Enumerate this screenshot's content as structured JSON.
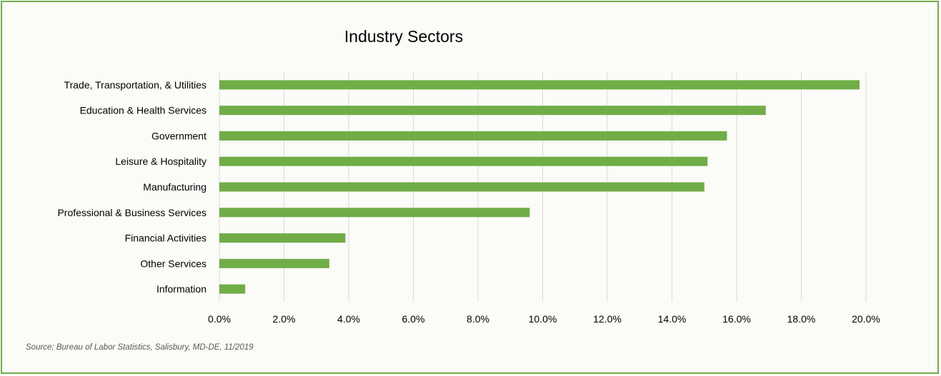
{
  "chart_data": {
    "type": "bar",
    "orientation": "horizontal",
    "title": "Industry Sectors",
    "categories": [
      "Trade, Transportation, & Utilities",
      "Education & Health Services",
      "Government",
      "Leisure & Hospitality",
      "Manufacturing",
      "Professional & Business Services",
      "Financial Activities",
      "Other Services",
      "Information"
    ],
    "values": [
      0.198,
      0.169,
      0.157,
      0.151,
      0.15,
      0.096,
      0.039,
      0.034,
      0.008
    ],
    "xlabel": "",
    "ylabel": "",
    "xlim": [
      0,
      0.2
    ],
    "x_ticks": [
      "0.0%",
      "2.0%",
      "4.0%",
      "6.0%",
      "8.0%",
      "10.0%",
      "12.0%",
      "14.0%",
      "16.0%",
      "18.0%",
      "20.0%"
    ],
    "grid": true,
    "legend": "none",
    "bar_color": "#70ad47",
    "gridline_color": "#d9d9d9",
    "border_color": "#70ad47"
  },
  "source_note": "Source; Bureau of Labor Statistics, Salisbury, MD-DE, 11/2019"
}
